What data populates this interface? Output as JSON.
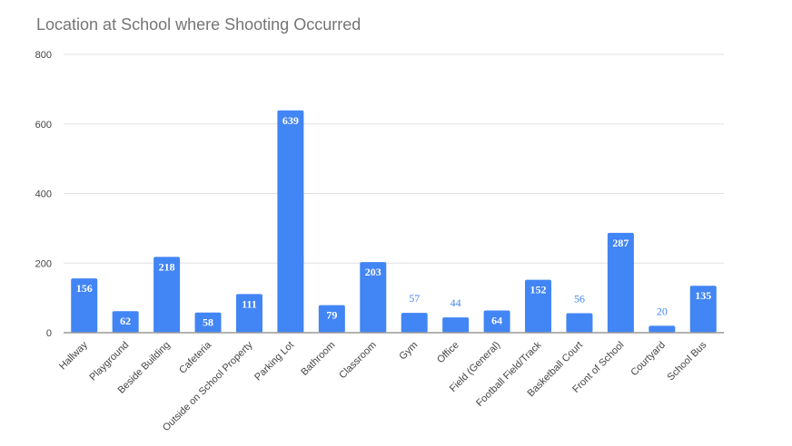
{
  "chart_data": {
    "type": "bar",
    "title": "Location at School where Shooting Occurred",
    "xlabel": "",
    "ylabel": "",
    "ylim": [
      0,
      800
    ],
    "yticks": [
      0,
      200,
      400,
      600,
      800
    ],
    "grid": true,
    "legend": "none",
    "bar_color": "#4285f4",
    "categories": [
      "Hallway",
      "Playground",
      "Beside Building",
      "Cafeteria",
      "Outside on School Property",
      "Parking Lot",
      "Bathroom",
      "Classroom",
      "Gym",
      "Office",
      "Field (General)",
      "Football Field/Track",
      "Basketball Court",
      "Front of School",
      "Courtyard",
      "School Bus"
    ],
    "values": [
      156,
      62,
      218,
      58,
      111,
      639,
      79,
      203,
      57,
      44,
      64,
      152,
      56,
      287,
      20,
      135
    ],
    "data_labels": [
      "156",
      "62",
      "218",
      "58",
      "111",
      "639",
      "79",
      "203",
      "57",
      "44",
      "64",
      "152",
      "56",
      "287",
      "20",
      "135"
    ]
  }
}
